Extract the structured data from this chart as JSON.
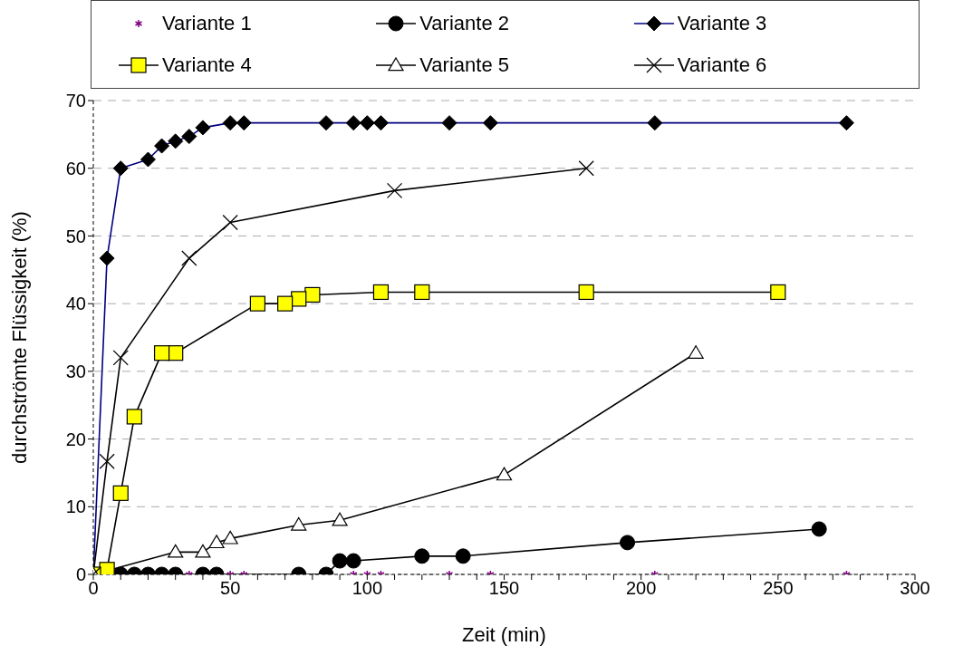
{
  "chart_data": {
    "type": "line",
    "xlabel": "Zeit (min)",
    "ylabel": "durchströmte Flüssigkeit (%)",
    "xlim": [
      0,
      300
    ],
    "xticks": [
      0,
      {
        "value": 10,
        "label": null
      },
      {
        "value": 20,
        "label": null
      },
      {
        "value": 30,
        "label": null
      },
      {
        "value": 40,
        "label": null
      },
      50,
      {
        "value": 60,
        "label": null
      },
      {
        "value": 70,
        "label": null
      },
      {
        "value": 80,
        "label": null
      },
      {
        "value": 90,
        "label": null
      },
      100,
      {
        "value": 110,
        "label": null
      },
      {
        "value": 120,
        "label": null
      },
      {
        "value": 130,
        "label": null
      },
      {
        "value": 140,
        "label": null
      },
      150,
      {
        "value": 160,
        "label": null
      },
      {
        "value": 170,
        "label": null
      },
      {
        "value": 180,
        "label": null
      },
      {
        "value": 190,
        "label": null
      },
      200,
      {
        "value": 210,
        "label": null
      },
      {
        "value": 220,
        "label": null
      },
      {
        "value": 230,
        "label": null
      },
      {
        "value": 240,
        "label": null
      },
      250,
      {
        "value": 260,
        "label": null
      },
      {
        "value": 270,
        "label": null
      },
      {
        "value": 280,
        "label": null
      },
      {
        "value": 290,
        "label": null
      },
      300
    ],
    "ylim": [
      0,
      70
    ],
    "yticks": [
      0,
      10,
      20,
      30,
      40,
      50,
      60,
      70
    ],
    "grid": "y",
    "legend": "top",
    "series": [
      {
        "name": "Variante 1",
        "type": "scatter",
        "marker": "cross",
        "color": "#800080",
        "x": [
          275,
          205,
          145,
          130,
          105,
          100,
          95,
          55,
          50,
          35
        ],
        "values": [
          0,
          0,
          0,
          0,
          0,
          0,
          0,
          0,
          0,
          0
        ]
      },
      {
        "name": "Variante 2",
        "marker": "circle",
        "color": "#000000",
        "colors": [
          "#000000",
          "#000000",
          "#000000",
          "#000000",
          "#000000",
          "#000000",
          "#000000",
          "#000000",
          "#000000",
          "#000000",
          "#000000",
          "#000000",
          "#000000",
          "#000000",
          "#000000",
          "#000000"
        ],
        "x": [
          265,
          195,
          135,
          120,
          95,
          90,
          85,
          75,
          45,
          40,
          30,
          25,
          20,
          15,
          10,
          0
        ],
        "values": [
          6.7,
          4.7,
          2.7,
          2.7,
          2,
          2,
          0,
          0,
          0,
          0,
          0,
          0,
          0,
          0,
          0,
          0
        ]
      },
      {
        "name": "Variante 3",
        "marker": "diamond",
        "color": "#000080",
        "colors": [
          "#000000",
          "#000000",
          "#000000",
          "#000000",
          "#000000",
          "#000000",
          "#000000",
          "#000000",
          "#000000",
          "#000000",
          "#000000",
          "#000000",
          "#000000",
          "#000000",
          "#000000",
          "#000000",
          "#000000",
          "#000000"
        ],
        "x": [
          275,
          205,
          145,
          130,
          105,
          100,
          95,
          85,
          55,
          50,
          40,
          35,
          30,
          25,
          20,
          10,
          5,
          0
        ],
        "values": [
          66.7,
          66.7,
          66.7,
          66.7,
          66.7,
          66.7,
          66.7,
          66.7,
          66.7,
          66.7,
          66,
          64.7,
          64,
          63.3,
          61.3,
          60,
          46.7,
          0
        ]
      },
      {
        "name": "Variante 4",
        "marker": "square",
        "color": "#000000",
        "colors": [
          "#ffff00",
          "#ffff00",
          "#ffff00",
          "#ffff00",
          "#ffff00",
          "#ffff00",
          "#ffff00",
          "#ffff00",
          "#ffff00",
          "#ffff00",
          "#ffff00",
          "#ffff00",
          "#ffff00",
          "#ffff00"
        ],
        "x": [
          250,
          180,
          120,
          105,
          80,
          75,
          70,
          60,
          30,
          25,
          15,
          10,
          5,
          0
        ],
        "values": [
          41.7,
          41.7,
          41.7,
          41.7,
          41.3,
          40.7,
          40,
          40,
          32.7,
          32.7,
          23.3,
          12,
          0.7,
          0
        ]
      },
      {
        "name": "Variante 5",
        "marker": "triangle",
        "color": "#000000",
        "colors": [
          "#ffffff",
          "#ffffff",
          "#ffffff",
          "#ffffff",
          "#ffffff",
          "#ffffff",
          "#ffffff",
          "#ffffff",
          "#ffffff"
        ],
        "x": [
          220,
          150,
          90,
          75,
          50,
          45,
          40,
          30,
          0
        ],
        "values": [
          32.7,
          14.7,
          8,
          7.3,
          5.3,
          4.7,
          3.3,
          3.3,
          0
        ]
      },
      {
        "name": "Variante 6",
        "marker": "cross",
        "color": "#000000",
        "x": [
          180,
          110,
          50,
          35,
          10,
          5,
          0
        ],
        "values": [
          60,
          56.7,
          52,
          46.7,
          32,
          16.7,
          0
        ]
      }
    ]
  }
}
